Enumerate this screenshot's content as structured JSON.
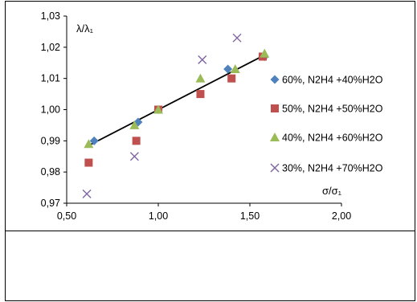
{
  "chart_data": {
    "type": "scatter",
    "ylabel": "λ/λ₁",
    "xlabel": "σ/σ₁",
    "xlim": [
      0.5,
      2.0
    ],
    "ylim": [
      0.97,
      1.03
    ],
    "x_ticks": [
      "0,50",
      "1,00",
      "1,50",
      "2,00"
    ],
    "y_ticks": [
      "0,97",
      "0,98",
      "0,99",
      "1,00",
      "1,01",
      "1,02",
      "1,03"
    ],
    "grid": false,
    "legend_position": "right",
    "series": [
      {
        "name": "60%, N2H4 +40%H2O",
        "marker": "diamond",
        "color": "#4f81bd",
        "points": [
          [
            0.65,
            0.99
          ],
          [
            0.89,
            0.996
          ],
          [
            1.0,
            1.0
          ],
          [
            1.38,
            1.013
          ],
          [
            1.58,
            1.017
          ]
        ]
      },
      {
        "name": "50%, N2H4 +50%H2O",
        "marker": "square",
        "color": "#c0504d",
        "points": [
          [
            0.62,
            0.983
          ],
          [
            0.88,
            0.99
          ],
          [
            1.0,
            1.0
          ],
          [
            1.23,
            1.005
          ],
          [
            1.4,
            1.01
          ],
          [
            1.57,
            1.017
          ]
        ]
      },
      {
        "name": "40%, N2H4 +60%H2O",
        "marker": "triangle",
        "color": "#9bbb59",
        "points": [
          [
            0.62,
            0.989
          ],
          [
            0.87,
            0.995
          ],
          [
            1.0,
            1.0
          ],
          [
            1.23,
            1.01
          ],
          [
            1.42,
            1.013
          ],
          [
            1.58,
            1.018
          ]
        ]
      },
      {
        "name": "30%, N2H4 +70%H2O",
        "marker": "x",
        "color": "#8064a2",
        "points": [
          [
            0.61,
            0.973
          ],
          [
            0.87,
            0.985
          ],
          [
            1.24,
            1.016
          ],
          [
            1.43,
            1.023
          ]
        ]
      }
    ],
    "trendline": {
      "from": [
        0.62,
        0.9885
      ],
      "to": [
        1.58,
        1.0175
      ],
      "color": "#000000"
    }
  }
}
